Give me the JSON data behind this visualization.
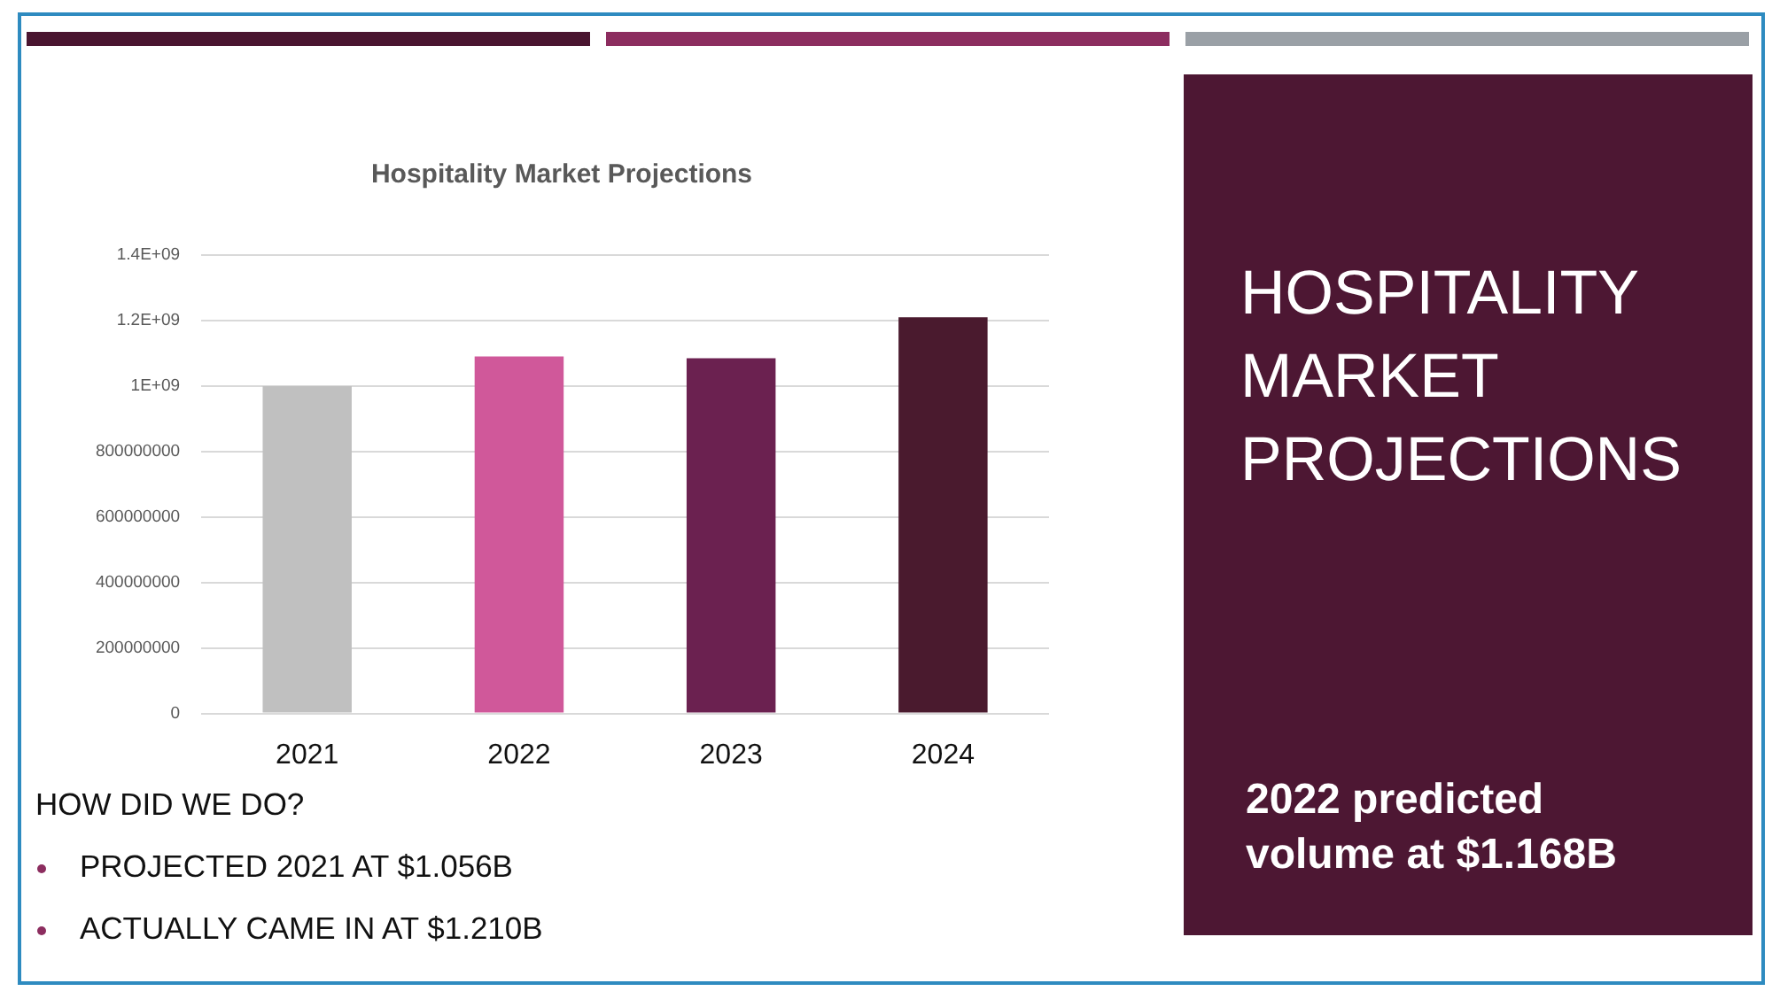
{
  "chart_data": {
    "type": "bar",
    "title": "Hospitality Market Projections",
    "categories": [
      "2021",
      "2022",
      "2023",
      "2024"
    ],
    "values": [
      1000000000,
      1090000000,
      1085000000,
      1210000000
    ],
    "colors": [
      "#c0c0c0",
      "#d0589a",
      "#6b2150",
      "#4a1a2e"
    ],
    "ylim": [
      0,
      1400000000
    ],
    "yticks": [
      0,
      200000000,
      400000000,
      600000000,
      800000000,
      {
        "value": 1000000000,
        "label": "1E+09"
      },
      {
        "value": 1200000000,
        "label": "1.2E+09"
      },
      {
        "value": 1400000000,
        "label": "1.4E+09"
      }
    ],
    "grid": "y",
    "annotations": [
      "HOSPITALITY MARKET PROJECTIONS",
      "HOW DID WE DO?",
      "PROJECTED 2021 AT $1.056B",
      "ACTUALLY CAME IN AT $1.210B",
      "2022 predicted volume at $1.168B"
    ]
  }
}
